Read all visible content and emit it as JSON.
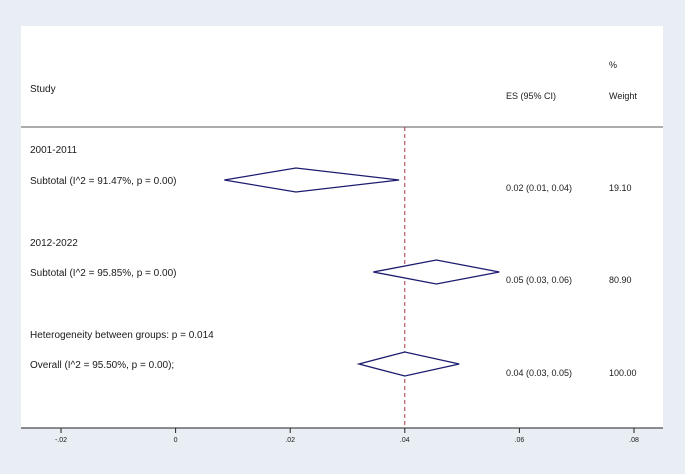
{
  "chart_data": {
    "type": "forest",
    "columns": {
      "study": "Study",
      "es": "ES (95% CI)",
      "weight_top": "%",
      "weight_bottom": "Weight"
    },
    "x_ticks": [
      -0.02,
      0,
      0.02,
      0.04,
      0.06,
      0.08
    ],
    "x_tick_labels": [
      "-.02",
      "0",
      ".02",
      ".04",
      ".06",
      ".08"
    ],
    "xlim": [
      -0.02,
      0.08
    ],
    "overall_line": 0.04,
    "rows": [
      {
        "kind": "group",
        "label": "2001-2011"
      },
      {
        "kind": "subtotal",
        "label": "Subtotal  (I^2 = 91.47%, p = 0.00)",
        "es": 0.021,
        "lo": 0.0085,
        "hi": 0.039,
        "es_text": "0.02 (0.01, 0.04)",
        "weight": "19.10"
      },
      {
        "kind": "group",
        "label": "2012-2022"
      },
      {
        "kind": "subtotal",
        "label": "Subtotal  (I^2 = 95.85%, p = 0.00)",
        "es": 0.0455,
        "lo": 0.0345,
        "hi": 0.0565,
        "es_text": "0.05 (0.03, 0.06)",
        "weight": "80.90"
      },
      {
        "kind": "note",
        "label": "Heterogeneity between groups: p = 0.014"
      },
      {
        "kind": "overall",
        "label": "Overall  (I^2 = 95.50%, p = 0.00);",
        "es": 0.04,
        "lo": 0.032,
        "hi": 0.0495,
        "es_text": "0.04 (0.03, 0.05)",
        "weight": "100.00"
      }
    ]
  }
}
